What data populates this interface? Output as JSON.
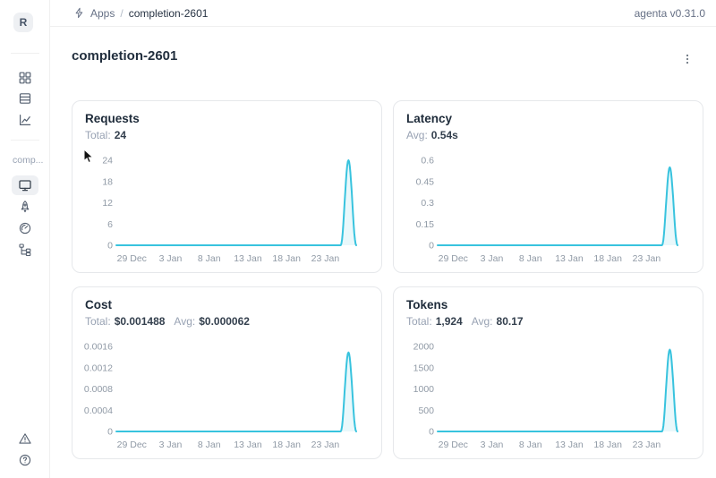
{
  "topbar": {
    "logo_letter": "R",
    "breadcrumb": {
      "icon": "lightning-icon",
      "root": "Apps",
      "separator": "/",
      "current": "completion-2601"
    },
    "version": "agenta v0.31.0"
  },
  "sidebar": {
    "app_label": "comp...",
    "items": [
      {
        "icon": "grid-icon",
        "name": "app-management"
      },
      {
        "icon": "rows-icon",
        "name": "test-sets"
      },
      {
        "icon": "chart-line-icon",
        "name": "observability"
      },
      {
        "icon": "monitor-icon",
        "name": "overview",
        "selected": true
      },
      {
        "icon": "rocket-icon",
        "name": "playground"
      },
      {
        "icon": "gauge-icon",
        "name": "evaluations"
      },
      {
        "icon": "tree-structure-icon",
        "name": "traces"
      },
      {
        "icon": "warning-triangle-icon",
        "name": "alerts"
      },
      {
        "icon": "question-circle-icon",
        "name": "help"
      }
    ]
  },
  "page": {
    "title": "completion-2601",
    "menu_icon": "kebab-menu-icon"
  },
  "colors": {
    "accent_line": "#38c3de",
    "area_fill": "#e9f8fb"
  },
  "chart_data": [
    {
      "type": "area",
      "title": "Requests",
      "stats": [
        {
          "label": "Total:",
          "value": "24"
        }
      ],
      "y_tick_labels": [
        "0",
        "6",
        "12",
        "18",
        "24"
      ],
      "y_tick_values": [
        0,
        6,
        12,
        18,
        24
      ],
      "ylim": [
        0,
        24
      ],
      "x_tick_labels": [
        "29 Dec",
        "3 Jan",
        "8 Jan",
        "13 Jan",
        "18 Jan",
        "23 Jan"
      ],
      "x_tick_days": [
        2,
        7,
        12,
        17,
        22,
        27
      ],
      "values": [
        0,
        0,
        0,
        0,
        0,
        0,
        0,
        0,
        0,
        0,
        0,
        0,
        0,
        0,
        0,
        0,
        0,
        0,
        0,
        0,
        0,
        0,
        0,
        0,
        0,
        0,
        0,
        0,
        0,
        0,
        24,
        0
      ]
    },
    {
      "type": "area",
      "title": "Latency",
      "stats": [
        {
          "label": "Avg:",
          "value": "0.54s"
        }
      ],
      "y_tick_labels": [
        "0",
        "0.15",
        "0.3",
        "0.45",
        "0.6"
      ],
      "y_tick_values": [
        0,
        0.15,
        0.3,
        0.45,
        0.6
      ],
      "ylim": [
        0,
        0.6
      ],
      "x_tick_labels": [
        "29 Dec",
        "3 Jan",
        "8 Jan",
        "13 Jan",
        "18 Jan",
        "23 Jan"
      ],
      "x_tick_days": [
        2,
        7,
        12,
        17,
        22,
        27
      ],
      "values": [
        0,
        0,
        0,
        0,
        0,
        0,
        0,
        0,
        0,
        0,
        0,
        0,
        0,
        0,
        0,
        0,
        0,
        0,
        0,
        0,
        0,
        0,
        0,
        0,
        0,
        0,
        0,
        0,
        0,
        0,
        0.55,
        0
      ]
    },
    {
      "type": "area",
      "title": "Cost",
      "stats": [
        {
          "label": "Total:",
          "value": "$0.001488"
        },
        {
          "label": "Avg:",
          "value": "$0.000062"
        }
      ],
      "y_tick_labels": [
        "0",
        "0.0004",
        "0.0008",
        "0.0012",
        "0.0016"
      ],
      "y_tick_values": [
        0,
        0.0004,
        0.0008,
        0.0012,
        0.0016
      ],
      "ylim": [
        0,
        0.0016
      ],
      "x_tick_labels": [
        "29 Dec",
        "3 Jan",
        "8 Jan",
        "13 Jan",
        "18 Jan",
        "23 Jan"
      ],
      "x_tick_days": [
        2,
        7,
        12,
        17,
        22,
        27
      ],
      "values": [
        0,
        0,
        0,
        0,
        0,
        0,
        0,
        0,
        0,
        0,
        0,
        0,
        0,
        0,
        0,
        0,
        0,
        0,
        0,
        0,
        0,
        0,
        0,
        0,
        0,
        0,
        0,
        0,
        0,
        0,
        0.001488,
        0
      ]
    },
    {
      "type": "area",
      "title": "Tokens",
      "stats": [
        {
          "label": "Total:",
          "value": "1,924"
        },
        {
          "label": "Avg:",
          "value": "80.17"
        }
      ],
      "y_tick_labels": [
        "0",
        "500",
        "1000",
        "1500",
        "2000"
      ],
      "y_tick_values": [
        0,
        500,
        1000,
        1500,
        2000
      ],
      "ylim": [
        0,
        2000
      ],
      "x_tick_labels": [
        "29 Dec",
        "3 Jan",
        "8 Jan",
        "13 Jan",
        "18 Jan",
        "23 Jan"
      ],
      "x_tick_days": [
        2,
        7,
        12,
        17,
        22,
        27
      ],
      "values": [
        0,
        0,
        0,
        0,
        0,
        0,
        0,
        0,
        0,
        0,
        0,
        0,
        0,
        0,
        0,
        0,
        0,
        0,
        0,
        0,
        0,
        0,
        0,
        0,
        0,
        0,
        0,
        0,
        0,
        0,
        1924,
        0
      ]
    }
  ]
}
